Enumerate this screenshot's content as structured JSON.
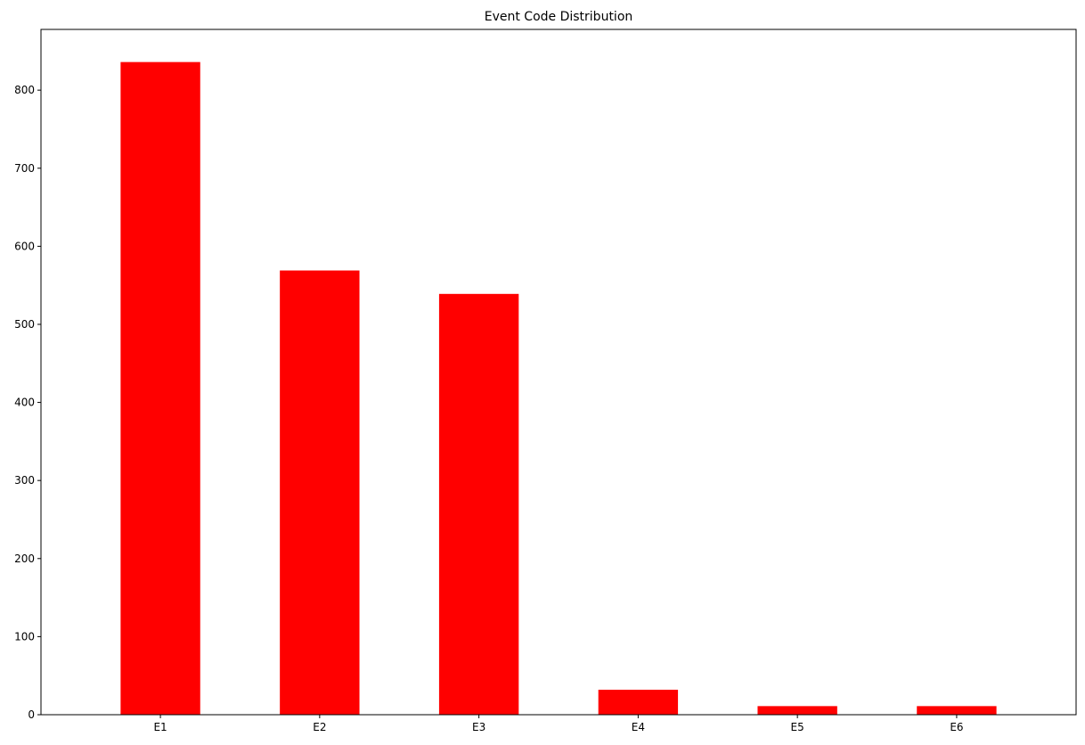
{
  "chart_data": {
    "type": "bar",
    "title": "Event Code Distribution",
    "xlabel": "",
    "ylabel": "",
    "categories": [
      "E1",
      "E2",
      "E3",
      "E4",
      "E5",
      "E6"
    ],
    "values": [
      836,
      569,
      539,
      32,
      11,
      11
    ],
    "ylim": [
      0,
      877.8
    ],
    "yticks": [
      0,
      100,
      200,
      300,
      400,
      500,
      600,
      700,
      800
    ],
    "grid": false,
    "legend": "none",
    "bar_color": "#ff0000"
  }
}
